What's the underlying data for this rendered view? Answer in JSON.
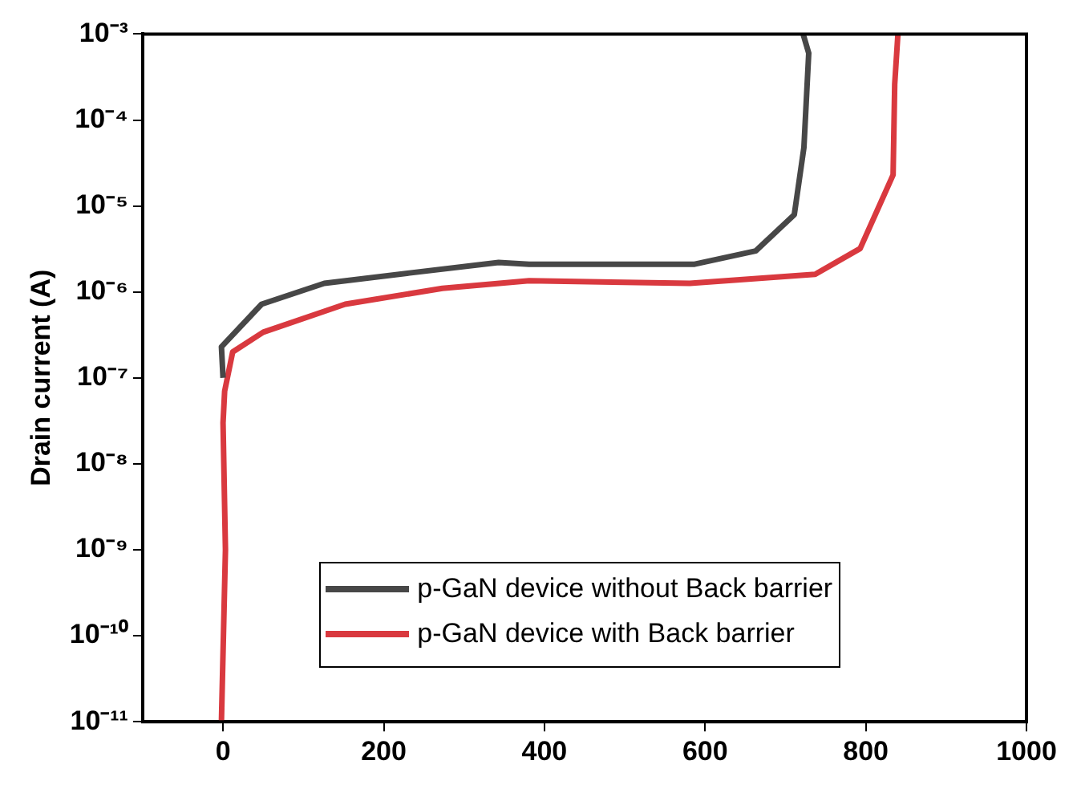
{
  "chart_data": {
    "type": "line",
    "ylabel": "Drain current (A)",
    "log": "y",
    "xlim": [
      -100,
      1000
    ],
    "xticks": [
      0,
      200,
      400,
      600,
      800,
      1000
    ],
    "ylim": [
      1e-11,
      0.001
    ],
    "yticks": [
      {
        "value": 1e-11,
        "label": "10⁻¹¹"
      },
      {
        "value": 1e-10,
        "label": "10⁻¹⁰"
      },
      {
        "value": 1e-09,
        "label": "10⁻⁹"
      },
      {
        "value": 1e-08,
        "label": "10⁻⁸"
      },
      {
        "value": 1e-07,
        "label": "10⁻⁷"
      },
      {
        "value": 1e-06,
        "label": "10⁻⁶"
      },
      {
        "value": 1e-05,
        "label": "10⁻⁵"
      },
      {
        "value": 0.0001,
        "label": "10⁻⁴"
      },
      {
        "value": 0.001,
        "label": "10⁻³"
      }
    ],
    "legend": "bottom",
    "grid": false,
    "marker": "none",
    "line_style": "solid",
    "series": [
      {
        "name": "p-GaN device without Back barrier",
        "color": "#474747",
        "x": [
          0,
          -2,
          48,
          126,
          232,
          343,
          381,
          467,
          587,
          663,
          711,
          723,
          729,
          722
        ],
        "values": [
          1e-07,
          2.3e-07,
          7.2e-07,
          1.26e-06,
          1.66e-06,
          2.2e-06,
          2.1e-06,
          2.1e-06,
          2.1e-06,
          3e-06,
          7.9e-06,
          4.8e-05,
          0.0006,
          0.001
        ]
      },
      {
        "name": "p-GaN device with Back barrier",
        "color": "#d9393f",
        "x": [
          -2,
          3,
          0,
          2,
          12,
          50,
          152,
          273,
          381,
          581,
          737,
          793,
          834,
          836,
          840
        ],
        "values": [
          1e-11,
          1e-09,
          3e-08,
          7e-08,
          2e-07,
          3.4e-07,
          7.2e-07,
          1.1e-06,
          1.35e-06,
          1.26e-06,
          1.6e-06,
          3.2e-06,
          2.3e-05,
          0.00026,
          0.001
        ]
      }
    ]
  }
}
